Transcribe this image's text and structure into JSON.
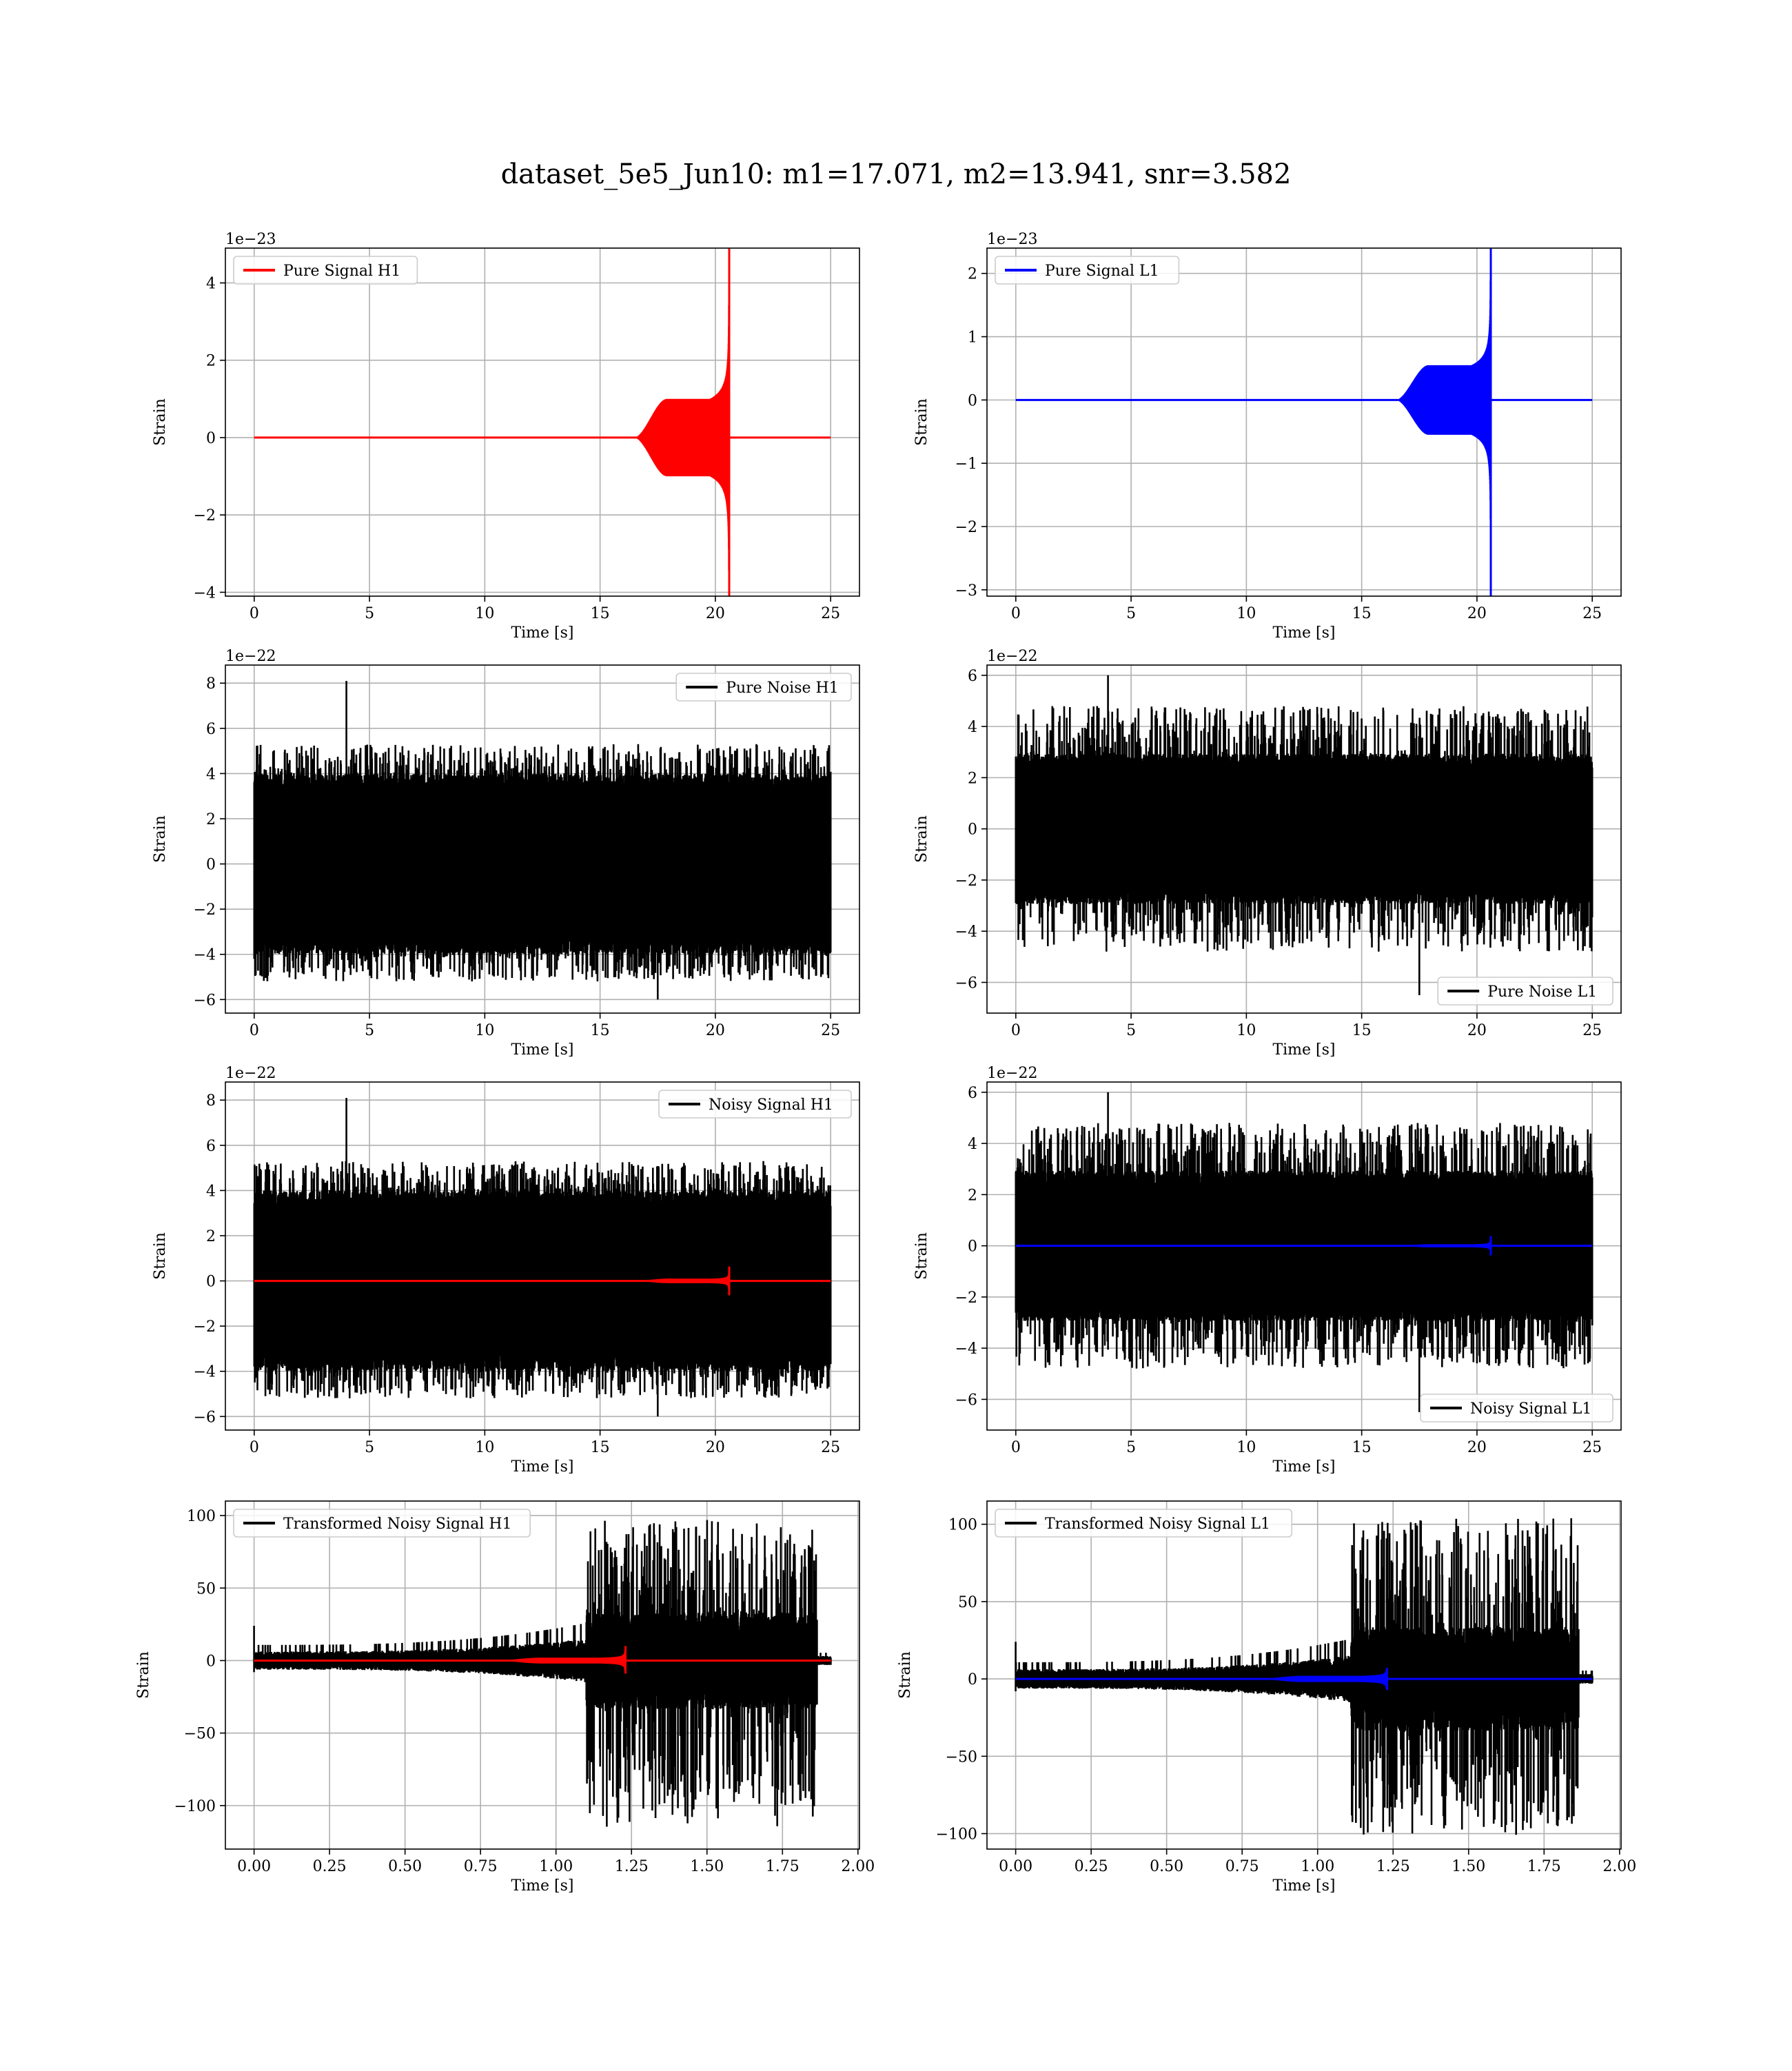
{
  "figure": {
    "title": "dataset_5e5_Jun10: m1=17.071, m2=13.941, snr=3.582"
  },
  "colors": {
    "h1_signal": "#ff0000",
    "l1_signal": "#0000ff",
    "noise": "#000000",
    "grid": "#b0b0b0"
  },
  "chart_data": [
    {
      "id": "pure-signal-h1",
      "type": "line",
      "xlabel": "Time [s]",
      "ylabel": "Strain",
      "offset_text": "1e−23",
      "xlim": [
        -1.25,
        26.25
      ],
      "ylim": [
        -4.1,
        4.9
      ],
      "xticks": [
        0,
        5,
        10,
        15,
        20,
        25
      ],
      "xtick_labels": [
        "0",
        "5",
        "10",
        "15",
        "20",
        "25"
      ],
      "yticks": [
        -4,
        -2,
        0,
        2,
        4
      ],
      "ytick_labels": [
        "−4",
        "−2",
        "0",
        "2",
        "4"
      ],
      "grid": true,
      "legend": "top-left",
      "series": [
        {
          "name": "Pure Signal H1",
          "color": "#ff0000",
          "kind": "chirp",
          "t_start": 0,
          "t_end": 25,
          "t_merge": 20.6,
          "onset": 16.5,
          "plateau": 1.0,
          "peak_pos": 4.6,
          "peak_neg": -3.8
        }
      ]
    },
    {
      "id": "pure-signal-l1",
      "type": "line",
      "xlabel": "Time [s]",
      "ylabel": "Strain",
      "offset_text": "1e−23",
      "xlim": [
        -1.25,
        26.25
      ],
      "ylim": [
        -3.1,
        2.4
      ],
      "xticks": [
        0,
        5,
        10,
        15,
        20,
        25
      ],
      "xtick_labels": [
        "0",
        "5",
        "10",
        "15",
        "20",
        "25"
      ],
      "yticks": [
        -3,
        -2,
        -1,
        0,
        1,
        2
      ],
      "ytick_labels": [
        "−3",
        "−2",
        "−1",
        "0",
        "1",
        "2"
      ],
      "grid": true,
      "legend": "top-left",
      "series": [
        {
          "name": "Pure Signal L1",
          "color": "#0000ff",
          "kind": "chirp",
          "t_start": 0,
          "t_end": 25,
          "t_merge": 20.6,
          "onset": 16.5,
          "plateau": 0.55,
          "peak_pos": 2.3,
          "peak_neg": -2.85
        }
      ]
    },
    {
      "id": "pure-noise-h1",
      "type": "line",
      "xlabel": "Time [s]",
      "ylabel": "Strain",
      "offset_text": "1e−22",
      "xlim": [
        -1.25,
        26.25
      ],
      "ylim": [
        -6.6,
        8.8
      ],
      "xticks": [
        0,
        5,
        10,
        15,
        20,
        25
      ],
      "xtick_labels": [
        "0",
        "5",
        "10",
        "15",
        "20",
        "25"
      ],
      "yticks": [
        -6,
        -4,
        -2,
        0,
        2,
        4,
        6,
        8
      ],
      "ytick_labels": [
        "−6",
        "−4",
        "−2",
        "0",
        "2",
        "4",
        "6",
        "8"
      ],
      "grid": true,
      "legend": "top-right",
      "series": [
        {
          "name": "Pure Noise H1",
          "color": "#000000",
          "kind": "noise",
          "t_start": 0,
          "t_end": 25,
          "band": 3.8,
          "spike_hi": 5.3,
          "spike_lo": -5.2,
          "max": 8.1,
          "min": -6.0
        }
      ]
    },
    {
      "id": "pure-noise-l1",
      "type": "line",
      "xlabel": "Time [s]",
      "ylabel": "Strain",
      "offset_text": "1e−22",
      "xlim": [
        -1.25,
        26.25
      ],
      "ylim": [
        -7.2,
        6.4
      ],
      "xticks": [
        0,
        5,
        10,
        15,
        20,
        25
      ],
      "xtick_labels": [
        "0",
        "5",
        "10",
        "15",
        "20",
        "25"
      ],
      "yticks": [
        -6,
        -4,
        -2,
        0,
        2,
        4,
        6
      ],
      "ytick_labels": [
        "−6",
        "−4",
        "−2",
        "0",
        "2",
        "4",
        "6"
      ],
      "grid": true,
      "legend": "bottom-right",
      "series": [
        {
          "name": "Pure Noise L1",
          "color": "#000000",
          "kind": "noise",
          "t_start": 0,
          "t_end": 25,
          "band": 2.8,
          "spike_hi": 4.8,
          "spike_lo": -4.8,
          "max": 6.0,
          "min": -6.5
        }
      ]
    },
    {
      "id": "noisy-signal-h1",
      "type": "line",
      "xlabel": "Time [s]",
      "ylabel": "Strain",
      "offset_text": "1e−22",
      "xlim": [
        -1.25,
        26.25
      ],
      "ylim": [
        -6.6,
        8.8
      ],
      "xticks": [
        0,
        5,
        10,
        15,
        20,
        25
      ],
      "xtick_labels": [
        "0",
        "5",
        "10",
        "15",
        "20",
        "25"
      ],
      "yticks": [
        -6,
        -4,
        -2,
        0,
        2,
        4,
        6,
        8
      ],
      "ytick_labels": [
        "−6",
        "−4",
        "−2",
        "0",
        "2",
        "4",
        "6",
        "8"
      ],
      "grid": true,
      "legend": "top-right",
      "series": [
        {
          "name": "Noisy Signal H1",
          "color": "#000000",
          "kind": "noise",
          "t_start": 0,
          "t_end": 25,
          "band": 3.8,
          "spike_hi": 5.3,
          "spike_lo": -5.2,
          "max": 8.1,
          "min": -6.0
        },
        {
          "color": "#ff0000",
          "kind": "chirp",
          "t_start": 0,
          "t_end": 25,
          "t_merge": 20.6,
          "onset": 16.5,
          "plateau": 0.1,
          "peak_pos": 0.46,
          "peak_neg": -0.38
        }
      ]
    },
    {
      "id": "noisy-signal-l1",
      "type": "line",
      "xlabel": "Time [s]",
      "ylabel": "Strain",
      "offset_text": "1e−22",
      "xlim": [
        -1.25,
        26.25
      ],
      "ylim": [
        -7.2,
        6.4
      ],
      "xticks": [
        0,
        5,
        10,
        15,
        20,
        25
      ],
      "xtick_labels": [
        "0",
        "5",
        "10",
        "15",
        "20",
        "25"
      ],
      "yticks": [
        -6,
        -4,
        -2,
        0,
        2,
        4,
        6
      ],
      "ytick_labels": [
        "−6",
        "−4",
        "−2",
        "0",
        "2",
        "4",
        "6"
      ],
      "grid": true,
      "legend": "bottom-right",
      "series": [
        {
          "name": "Noisy Signal L1",
          "color": "#000000",
          "kind": "noise",
          "t_start": 0,
          "t_end": 25,
          "band": 2.8,
          "spike_hi": 4.8,
          "spike_lo": -4.8,
          "max": 6.0,
          "min": -6.5
        },
        {
          "color": "#0000ff",
          "kind": "chirp",
          "t_start": 0,
          "t_end": 25,
          "t_merge": 20.6,
          "onset": 16.5,
          "plateau": 0.06,
          "peak_pos": 0.23,
          "peak_neg": -0.28
        }
      ]
    },
    {
      "id": "transformed-noisy-signal-h1",
      "type": "line",
      "xlabel": "Time [s]",
      "ylabel": "Strain",
      "offset_text": "",
      "xlim": [
        -0.095,
        2.005
      ],
      "ylim": [
        -130,
        110
      ],
      "xticks": [
        0,
        0.25,
        0.5,
        0.75,
        1.0,
        1.25,
        1.5,
        1.75,
        2.0
      ],
      "xtick_labels": [
        "0.00",
        "0.25",
        "0.50",
        "0.75",
        "1.00",
        "1.25",
        "1.50",
        "1.75",
        "2.00"
      ],
      "yticks": [
        -100,
        -50,
        0,
        50,
        100
      ],
      "ytick_labels": [
        "−100",
        "−50",
        "0",
        "50",
        "100"
      ],
      "grid": true,
      "legend": "top-left",
      "series": [
        {
          "name": "Transformed Noisy Signal H1",
          "color": "#000000",
          "kind": "whitened",
          "t_start": 0,
          "t_end": 1.91,
          "step": 1.1,
          "amp_pre": 6,
          "amp_post": 32,
          "max": 97,
          "min": -116
        },
        {
          "color": "#ff0000",
          "kind": "chirp",
          "t_start": 0,
          "t_end": 1.91,
          "t_merge": 1.23,
          "onset": 0.8,
          "plateau": 2,
          "peak_pos": 10,
          "peak_neg": -9
        }
      ]
    },
    {
      "id": "transformed-noisy-signal-l1",
      "type": "line",
      "xlabel": "Time [s]",
      "ylabel": "Strain",
      "offset_text": "",
      "xlim": [
        -0.095,
        2.005
      ],
      "ylim": [
        -110,
        115
      ],
      "xticks": [
        0,
        0.25,
        0.5,
        0.75,
        1.0,
        1.25,
        1.5,
        1.75,
        2.0
      ],
      "xtick_labels": [
        "0.00",
        "0.25",
        "0.50",
        "0.75",
        "1.00",
        "1.25",
        "1.50",
        "1.75",
        "2.00"
      ],
      "yticks": [
        -100,
        -50,
        0,
        50,
        100
      ],
      "ytick_labels": [
        "−100",
        "−50",
        "0",
        "50",
        "100"
      ],
      "grid": true,
      "legend": "top-left",
      "series": [
        {
          "name": "Transformed Noisy Signal L1",
          "color": "#000000",
          "kind": "whitened",
          "t_start": 0,
          "t_end": 1.91,
          "step": 1.11,
          "amp_pre": 6,
          "amp_post": 32,
          "max": 104,
          "min": -101
        },
        {
          "color": "#0000ff",
          "kind": "chirp",
          "t_start": 0,
          "t_end": 1.91,
          "t_merge": 1.23,
          "onset": 0.8,
          "plateau": 2,
          "peak_pos": 7,
          "peak_neg": -7
        }
      ]
    }
  ]
}
